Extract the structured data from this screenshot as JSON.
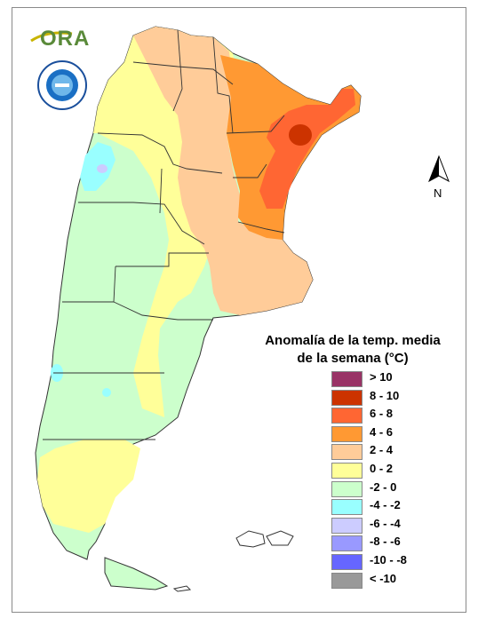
{
  "legend": {
    "title_line1": "Anomalía de la temp. media",
    "title_line2": "de la semana (°C)",
    "items": [
      {
        "label": "> 10",
        "color": "#993366"
      },
      {
        "label": "8 - 10",
        "color": "#cc3300"
      },
      {
        "label": "6 - 8",
        "color": "#ff6633"
      },
      {
        "label": "4 - 6",
        "color": "#ff9933"
      },
      {
        "label": "2 - 4",
        "color": "#ffcc99"
      },
      {
        "label": "0 - 2",
        "color": "#ffff99"
      },
      {
        "label": "-2 - 0",
        "color": "#ccffcc"
      },
      {
        "label": "-4 - -2",
        "color": "#99ffff"
      },
      {
        "label": "-6 - -4",
        "color": "#ccccff"
      },
      {
        "label": "-8 - -6",
        "color": "#9999ff"
      },
      {
        "label": "-10 - -8",
        "color": "#6666ff"
      },
      {
        "label": "< -10",
        "color": "#999999"
      }
    ]
  },
  "logo": {
    "text": "ORA"
  },
  "north_arrow": {
    "label": "N"
  }
}
